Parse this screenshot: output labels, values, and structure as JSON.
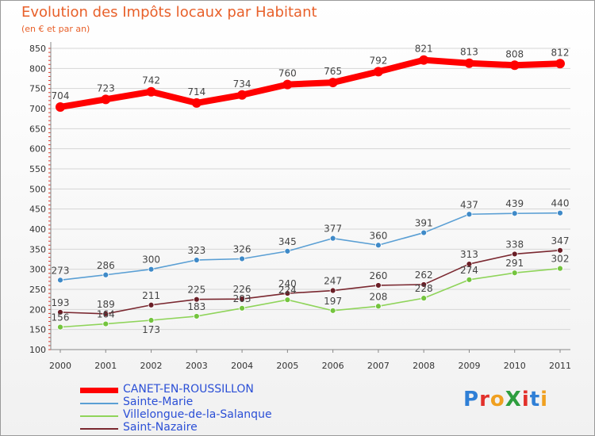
{
  "title": "Evolution des Impôts locaux par Habitant",
  "subtitle": "(en € et par an)",
  "logo": {
    "text": "ProXiti",
    "colors": [
      "#2f7fd6",
      "#e2302b",
      "#f0a020",
      "#2e9e3e",
      "#e2302b",
      "#2f7fd6",
      "#f0a020"
    ]
  },
  "chart_data": {
    "type": "line",
    "title": "Evolution des Impôts locaux par Habitant",
    "subtitle": "(en € et par an)",
    "xlabel": "",
    "ylabel": "",
    "x": [
      "2000",
      "2001",
      "2002",
      "2003",
      "2004",
      "2005",
      "2006",
      "2007",
      "2008",
      "2009",
      "2010",
      "2011"
    ],
    "ylim": [
      100,
      850
    ],
    "yticks": [
      100,
      150,
      200,
      250,
      300,
      350,
      400,
      450,
      500,
      550,
      600,
      650,
      700,
      750,
      800,
      850
    ],
    "grid": "horizontal",
    "legend_position": "bottom-left",
    "series": [
      {
        "name": "CANET-EN-ROUSSILLON",
        "color": "#ff0000",
        "marker_color": "#ff0000",
        "emphasis": "bold",
        "values": [
          704,
          723,
          742,
          714,
          734,
          760,
          765,
          792,
          821,
          813,
          808,
          812
        ],
        "labels": [
          "704",
          "723",
          "742",
          "714",
          "734",
          "760",
          "765",
          "792",
          "821",
          "813",
          "808",
          "812"
        ],
        "label_side": [
          "above",
          "above",
          "above",
          "above",
          "above",
          "above",
          "above",
          "above",
          "above",
          "above",
          "above",
          "above"
        ]
      },
      {
        "name": "Sainte-Marie",
        "color": "#5a9fd4",
        "marker_color": "#3f8ac8",
        "values": [
          273,
          286,
          300,
          323,
          326,
          345,
          377,
          360,
          391,
          437,
          439,
          440
        ],
        "labels": [
          "273",
          "286",
          "300",
          "323",
          "326",
          "345",
          "377",
          "360",
          "391",
          "437",
          "439",
          "440"
        ],
        "label_side": [
          "above",
          "above",
          "above",
          "above",
          "above",
          "above",
          "above",
          "above",
          "above",
          "above",
          "above",
          "above"
        ]
      },
      {
        "name": "Villelongue-de-la-Salanque",
        "color": "#8fd45a",
        "marker_color": "#74c43e",
        "values": [
          156,
          164,
          173,
          183,
          203,
          224,
          197,
          208,
          228,
          274,
          291,
          302
        ],
        "labels": [
          "156",
          "164",
          "173",
          "183",
          "203",
          "224",
          "197",
          "208",
          "228",
          "274",
          "291",
          "302"
        ],
        "label_side": [
          "above",
          "above",
          "below",
          "above",
          "above",
          "above",
          "above",
          "above",
          "above",
          "above",
          "above",
          "above"
        ]
      },
      {
        "name": "Saint-Nazaire",
        "color": "#7a2830",
        "marker_color": "#6a1e26",
        "values": [
          193,
          189,
          211,
          225,
          226,
          240,
          247,
          260,
          262,
          313,
          338,
          347
        ],
        "labels": [
          "193",
          "189",
          "211",
          "225",
          "226",
          "240",
          "247",
          "260",
          "262",
          "313",
          "338",
          "347"
        ],
        "label_side": [
          "above",
          "above",
          "above",
          "above",
          "above",
          "above",
          "above",
          "above",
          "above",
          "above",
          "above",
          "above"
        ]
      }
    ]
  }
}
